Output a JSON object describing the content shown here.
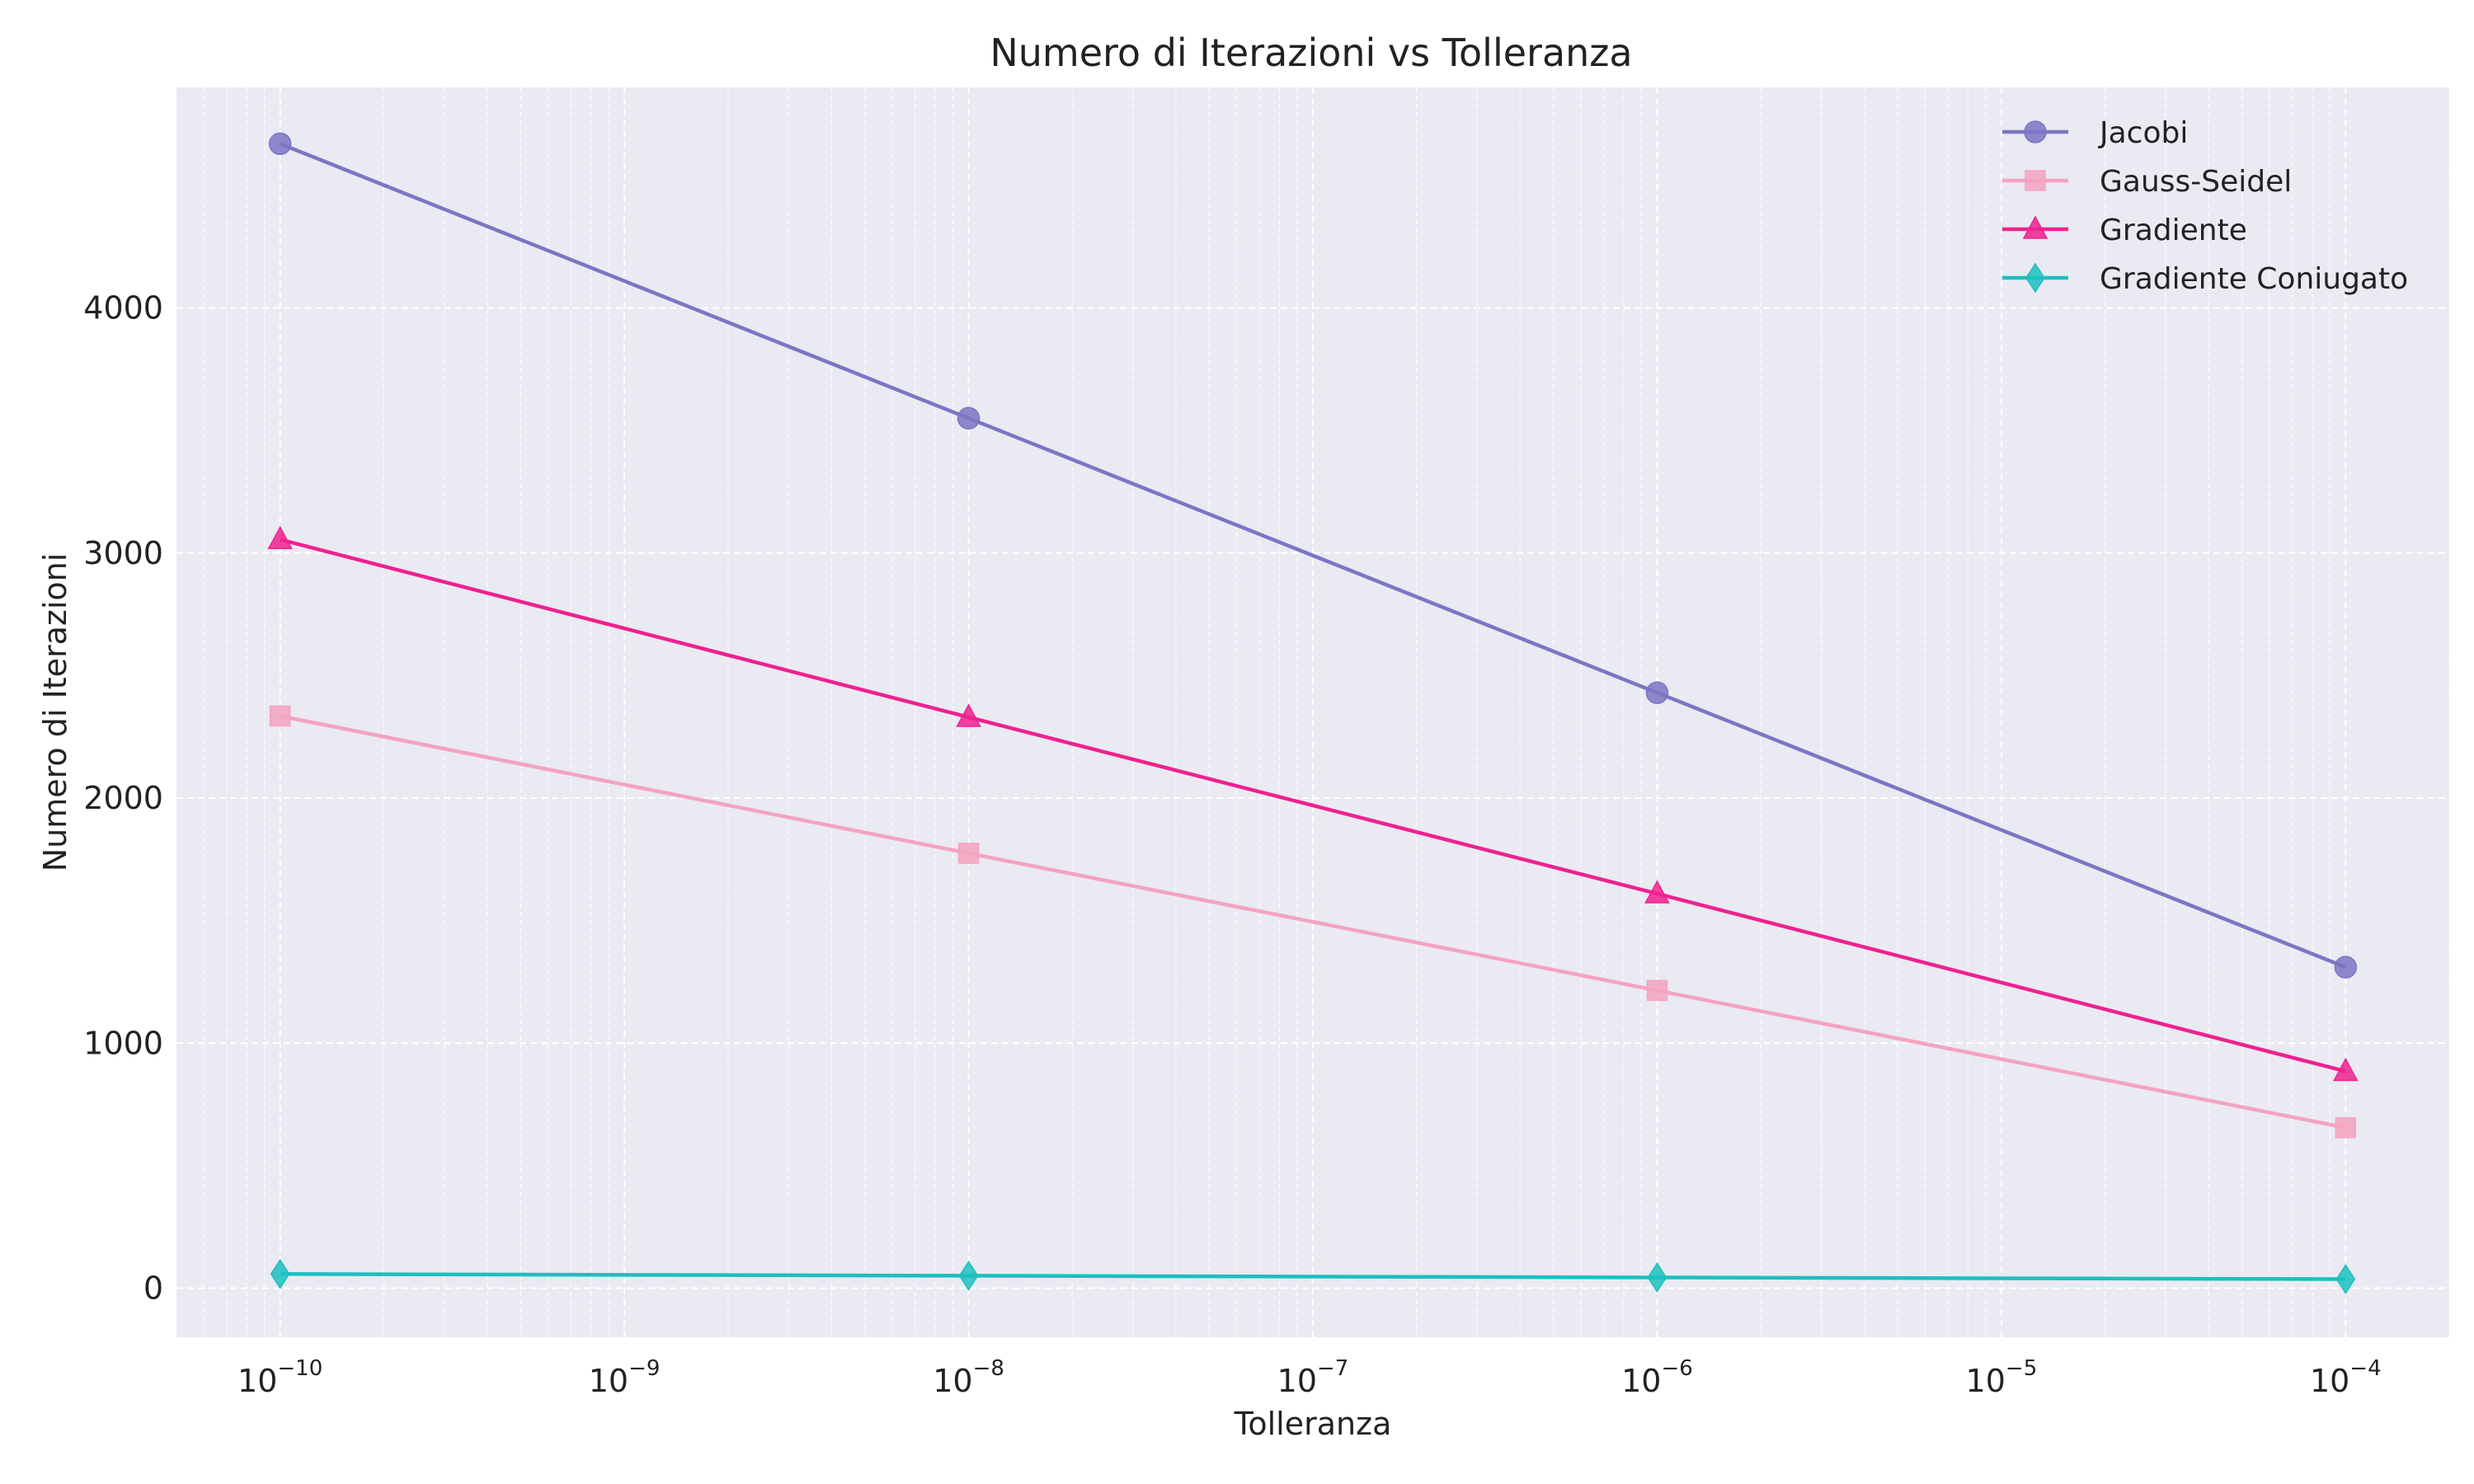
{
  "chart_data": {
    "type": "line",
    "title": "Numero di Iterazioni vs Tolleranza",
    "xlabel": "Tolleranza",
    "ylabel": "Numero di Iterazioni",
    "xscale": "log",
    "x": [
      1e-10,
      1e-08,
      1e-06,
      0.0001
    ],
    "xlim": [
      5e-11,
      0.0002
    ],
    "ylim": [
      -200,
      4900
    ],
    "xticks": [
      {
        "value": 1e-10,
        "base": "10",
        "exp": "−10"
      },
      {
        "value": 1e-09,
        "base": "10",
        "exp": "−9"
      },
      {
        "value": 1e-08,
        "base": "10",
        "exp": "−8"
      },
      {
        "value": 1e-07,
        "base": "10",
        "exp": "−7"
      },
      {
        "value": 1e-06,
        "base": "10",
        "exp": "−6"
      },
      {
        "value": 1e-05,
        "base": "10",
        "exp": "−5"
      },
      {
        "value": 0.0001,
        "base": "10",
        "exp": "−4"
      }
    ],
    "yticks": [
      0,
      1000,
      2000,
      3000,
      4000
    ],
    "grid": true,
    "legend_position": "top-right",
    "series": [
      {
        "name": "Jacobi",
        "values": [
          4670,
          3550,
          2430,
          1310
        ],
        "color": "#7b76c4",
        "marker": "circle"
      },
      {
        "name": "Gauss-Seidel",
        "values": [
          2335,
          1775,
          1215,
          655
        ],
        "color": "#f4a3c0",
        "marker": "square"
      },
      {
        "name": "Gradiente",
        "values": [
          3055,
          2330,
          1610,
          885
        ],
        "color": "#ee2290",
        "marker": "triangle"
      },
      {
        "name": "Gradiente Coniugato",
        "values": [
          58,
          51,
          44,
          37
        ],
        "color": "#1dbfbf",
        "marker": "diamond"
      }
    ]
  }
}
